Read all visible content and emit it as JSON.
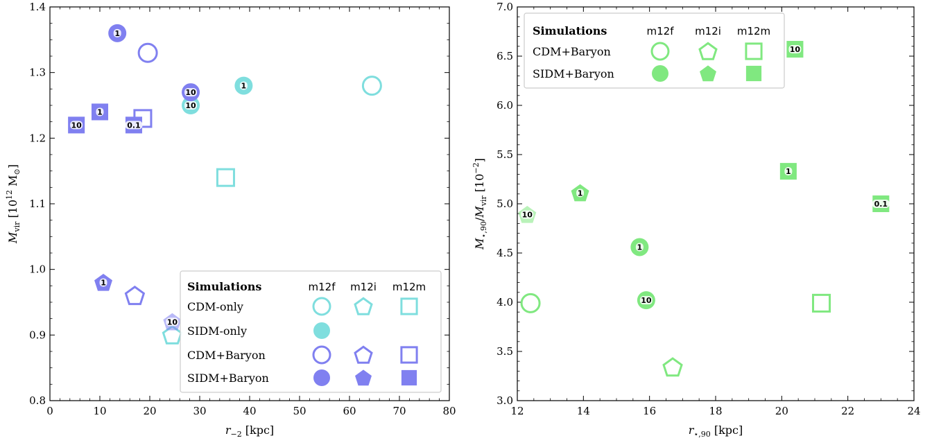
{
  "colors": {
    "cyan": "#7fdede",
    "blue": "#8080f0",
    "green": "#80e880"
  },
  "chart_data": [
    {
      "type": "scatter",
      "title": "",
      "xlabel_main": "r",
      "xlabel_sub": "−2",
      "xlabel_unit": "[kpc]",
      "ylabel_main": "M",
      "ylabel_sub": "vir",
      "ylabel_unit_pre": "[10",
      "ylabel_unit_exp": "12",
      "ylabel_unit_post": "M",
      "ylabel_unit_sun": "⊙",
      "ylabel_unit_close": "]",
      "xlim": [
        0,
        80
      ],
      "ylim": [
        0.8,
        1.4
      ],
      "xticks": [
        "0",
        "10",
        "20",
        "30",
        "40",
        "50",
        "60",
        "70",
        "80"
      ],
      "yticks": [
        "0.8",
        "0.9",
        "1.0",
        "1.1",
        "1.2",
        "1.3",
        "1.4"
      ],
      "legend": {
        "placement": "lower-right",
        "title": "Simulations",
        "columns": [
          "m12f",
          "m12i",
          "m12m"
        ],
        "rows": [
          {
            "label": "CDM-only",
            "color": "cyan",
            "filled": false,
            "shapes": [
              "circle",
              "pentagon",
              "square"
            ]
          },
          {
            "label": "SIDM-only",
            "color": "cyan",
            "filled": true,
            "shapes": [
              "circle"
            ]
          },
          {
            "label": "CDM+Baryon",
            "color": "blue",
            "filled": false,
            "shapes": [
              "circle",
              "pentagon",
              "square"
            ]
          },
          {
            "label": "SIDM+Baryon",
            "color": "blue",
            "filled": true,
            "shapes": [
              "circle",
              "pentagon",
              "square"
            ]
          }
        ]
      },
      "points": [
        {
          "x": 64.5,
          "y": 1.28,
          "shape": "circle",
          "color": "cyan",
          "filled": false,
          "label": ""
        },
        {
          "x": 38.8,
          "y": 1.28,
          "shape": "circle",
          "color": "cyan",
          "filled": true,
          "label": "1"
        },
        {
          "x": 28.2,
          "y": 1.25,
          "shape": "circle",
          "color": "cyan",
          "filled": true,
          "label": "10"
        },
        {
          "x": 35.2,
          "y": 1.14,
          "shape": "square",
          "color": "cyan",
          "filled": false,
          "label": ""
        },
        {
          "x": 24.5,
          "y": 0.9,
          "shape": "pentagon",
          "color": "cyan",
          "filled": false,
          "label": ""
        },
        {
          "x": 19.6,
          "y": 1.33,
          "shape": "circle",
          "color": "blue",
          "filled": false,
          "label": ""
        },
        {
          "x": 13.5,
          "y": 1.36,
          "shape": "circle",
          "color": "blue",
          "filled": true,
          "label": "1"
        },
        {
          "x": 28.2,
          "y": 1.27,
          "shape": "circle",
          "color": "blue",
          "filled": true,
          "label": "10"
        },
        {
          "x": 18.6,
          "y": 1.23,
          "shape": "square",
          "color": "blue",
          "filled": false,
          "label": ""
        },
        {
          "x": 10.0,
          "y": 1.24,
          "shape": "square",
          "color": "blue",
          "filled": true,
          "label": "1"
        },
        {
          "x": 5.3,
          "y": 1.22,
          "shape": "square",
          "color": "blue",
          "filled": true,
          "label": "10"
        },
        {
          "x": 16.8,
          "y": 1.22,
          "shape": "square",
          "color": "blue",
          "filled": true,
          "label": "0.1"
        },
        {
          "x": 17.0,
          "y": 0.96,
          "shape": "pentagon",
          "color": "blue",
          "filled": false,
          "label": ""
        },
        {
          "x": 10.7,
          "y": 0.98,
          "shape": "pentagon",
          "color": "blue",
          "filled": true,
          "label": "1"
        },
        {
          "x": 24.5,
          "y": 0.92,
          "shape": "pentagon",
          "color": "blue",
          "filled": true,
          "faded": true,
          "label": "10"
        }
      ]
    },
    {
      "type": "scatter",
      "title": "",
      "xlabel_main": "r",
      "xlabel_sub": "⋆,90",
      "xlabel_unit": "[kpc]",
      "ylabel_main": "M",
      "ylabel_sub": "⋆,90",
      "ylabel_mid": "/",
      "ylabel_main2": "M",
      "ylabel_sub2": "vir",
      "ylabel_unit_pre": "[10",
      "ylabel_unit_exp": "−2",
      "ylabel_unit_close": "]",
      "xlim": [
        12,
        24
      ],
      "ylim": [
        3.0,
        7.0
      ],
      "xticks": [
        "12",
        "14",
        "16",
        "18",
        "20",
        "22",
        "24"
      ],
      "yticks": [
        "3.0",
        "3.5",
        "4.0",
        "4.5",
        "5.0",
        "5.5",
        "6.0",
        "6.5",
        "7.0"
      ],
      "legend": {
        "placement": "upper-left",
        "title": "Simulations",
        "columns": [
          "m12f",
          "m12i",
          "m12m"
        ],
        "rows": [
          {
            "label": "CDM+Baryon",
            "color": "green",
            "filled": false,
            "shapes": [
              "circle",
              "pentagon",
              "square"
            ]
          },
          {
            "label": "SIDM+Baryon",
            "color": "green",
            "filled": true,
            "shapes": [
              "circle",
              "pentagon",
              "square"
            ]
          }
        ]
      },
      "points": [
        {
          "x": 12.4,
          "y": 3.99,
          "shape": "circle",
          "color": "green",
          "filled": false,
          "label": ""
        },
        {
          "x": 15.7,
          "y": 4.56,
          "shape": "circle",
          "color": "green",
          "filled": true,
          "label": "1"
        },
        {
          "x": 15.9,
          "y": 4.02,
          "shape": "circle",
          "color": "green",
          "filled": true,
          "label": "10"
        },
        {
          "x": 16.7,
          "y": 3.34,
          "shape": "pentagon",
          "color": "green",
          "filled": false,
          "label": ""
        },
        {
          "x": 13.9,
          "y": 5.11,
          "shape": "pentagon",
          "color": "green",
          "filled": true,
          "label": "1"
        },
        {
          "x": 12.3,
          "y": 4.89,
          "shape": "pentagon",
          "color": "green",
          "filled": true,
          "faded": true,
          "label": "10"
        },
        {
          "x": 21.2,
          "y": 3.99,
          "shape": "square",
          "color": "green",
          "filled": false,
          "label": ""
        },
        {
          "x": 20.2,
          "y": 5.33,
          "shape": "square",
          "color": "green",
          "filled": true,
          "label": "1"
        },
        {
          "x": 20.4,
          "y": 6.57,
          "shape": "square",
          "color": "green",
          "filled": true,
          "label": "10"
        },
        {
          "x": 23.0,
          "y": 5.0,
          "shape": "square",
          "color": "green",
          "filled": true,
          "label": "0.1"
        }
      ]
    }
  ]
}
